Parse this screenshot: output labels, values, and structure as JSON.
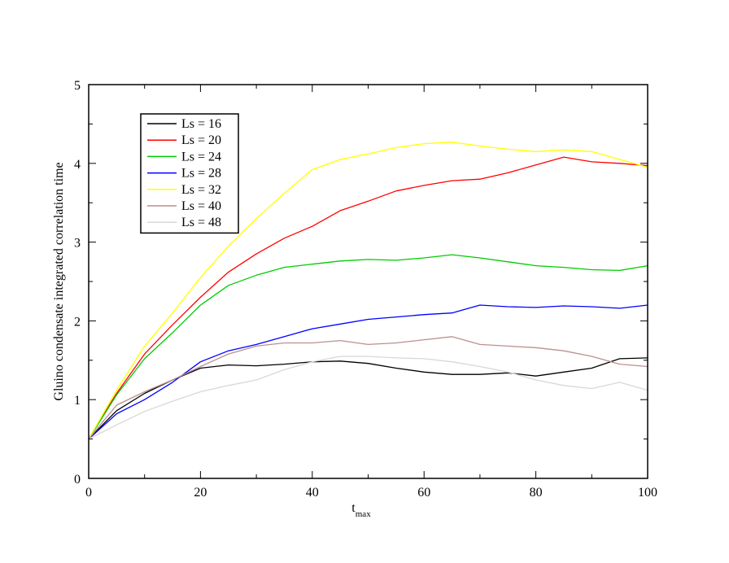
{
  "chart_data": {
    "type": "line",
    "title": "",
    "xlabel": "t",
    "xlabel_sub": "max",
    "ylabel": "Gluino condensate integrated correlation time",
    "xlim": [
      0,
      100
    ],
    "ylim": [
      0,
      5
    ],
    "xticks": [
      0,
      20,
      40,
      60,
      80,
      100
    ],
    "yticks": [
      0,
      1,
      2,
      3,
      4,
      5
    ],
    "xtick_labels": [
      "0",
      "20",
      "40",
      "60",
      "80",
      "100"
    ],
    "ytick_labels": [
      "0",
      "1",
      "2",
      "3",
      "4",
      "5"
    ],
    "grid": false,
    "legend_position": "top-left",
    "x": [
      0,
      5,
      10,
      15,
      20,
      25,
      30,
      35,
      40,
      45,
      50,
      55,
      60,
      65,
      70,
      75,
      80,
      85,
      90,
      95,
      100
    ],
    "series": [
      {
        "name": "Ls = 16",
        "color": "#000000",
        "values": [
          0.5,
          0.86,
          1.08,
          1.25,
          1.4,
          1.44,
          1.43,
          1.45,
          1.48,
          1.49,
          1.46,
          1.4,
          1.35,
          1.32,
          1.32,
          1.34,
          1.3,
          1.35,
          1.4,
          1.52,
          1.53
        ]
      },
      {
        "name": "Ls = 20",
        "color": "#ff0000",
        "values": [
          0.5,
          1.08,
          1.58,
          1.95,
          2.3,
          2.62,
          2.85,
          3.05,
          3.2,
          3.4,
          3.52,
          3.65,
          3.72,
          3.78,
          3.8,
          3.88,
          3.98,
          4.08,
          4.02,
          4.0,
          3.97
        ]
      },
      {
        "name": "Ls = 24",
        "color": "#00cc00",
        "values": [
          0.5,
          1.06,
          1.52,
          1.85,
          2.2,
          2.45,
          2.58,
          2.68,
          2.72,
          2.76,
          2.78,
          2.77,
          2.8,
          2.84,
          2.8,
          2.75,
          2.7,
          2.68,
          2.65,
          2.64,
          2.7
        ]
      },
      {
        "name": "Ls = 28",
        "color": "#0000ff",
        "values": [
          0.5,
          0.82,
          1.0,
          1.22,
          1.48,
          1.62,
          1.7,
          1.8,
          1.9,
          1.96,
          2.02,
          2.05,
          2.08,
          2.1,
          2.2,
          2.18,
          2.17,
          2.19,
          2.18,
          2.16,
          2.2
        ]
      },
      {
        "name": "Ls = 32",
        "color": "#ffff00",
        "values": [
          0.5,
          1.12,
          1.68,
          2.1,
          2.55,
          2.95,
          3.3,
          3.62,
          3.92,
          4.05,
          4.12,
          4.2,
          4.25,
          4.27,
          4.22,
          4.18,
          4.15,
          4.17,
          4.15,
          4.05,
          3.95
        ]
      },
      {
        "name": "Ls = 40",
        "color": "#bc8f8f",
        "values": [
          0.5,
          0.93,
          1.1,
          1.25,
          1.42,
          1.58,
          1.68,
          1.72,
          1.72,
          1.75,
          1.7,
          1.72,
          1.76,
          1.8,
          1.7,
          1.68,
          1.66,
          1.62,
          1.55,
          1.45,
          1.42
        ]
      },
      {
        "name": "Ls = 48",
        "color": "#d8d8d8",
        "values": [
          0.5,
          0.68,
          0.85,
          0.98,
          1.1,
          1.18,
          1.25,
          1.38,
          1.48,
          1.55,
          1.55,
          1.53,
          1.52,
          1.48,
          1.42,
          1.35,
          1.25,
          1.18,
          1.14,
          1.22,
          1.12
        ]
      }
    ]
  }
}
